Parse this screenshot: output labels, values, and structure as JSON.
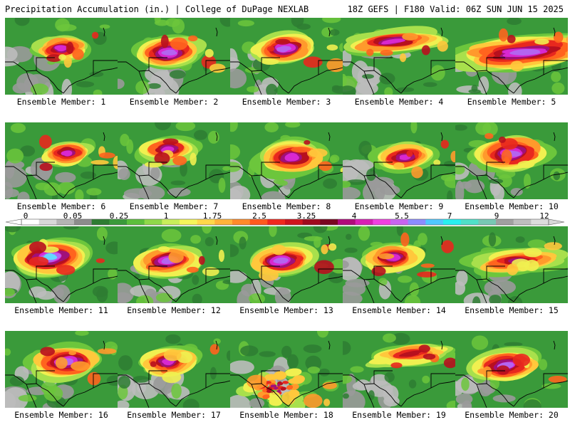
{
  "header": {
    "title": "Precipitation Accumulation (in.) | College of DuPage NEXLAB",
    "run_info": "18Z GEFS | F180 Valid: 06Z SUN JUN 15 2025"
  },
  "colorbar": {
    "labels": [
      "0",
      "0.05",
      "0.25",
      "1",
      "1.75",
      "2.5",
      "3.25",
      "4",
      "5.5",
      "7",
      "9",
      "12"
    ],
    "colors": [
      "#ffffff",
      "#d8d8d8",
      "#b4b4b4",
      "#8c8c8c",
      "#2e7d32",
      "#3a9a3a",
      "#5cbf3c",
      "#8fd84a",
      "#c8ee5a",
      "#f5f55a",
      "#ffd84a",
      "#ffb33a",
      "#ff8a2a",
      "#ff5a1e",
      "#f0281e",
      "#d0141e",
      "#a00a1e",
      "#7a0620",
      "#b00a7a",
      "#d81eb4",
      "#f040e0",
      "#c864f0",
      "#8c8cff",
      "#50c8ff",
      "#28f0f0",
      "#50e0c8",
      "#78c8b4",
      "#a0a0a0",
      "#bebebe",
      "#dcdcdc"
    ]
  },
  "members": [
    {
      "label": "Ensemble Member: 1",
      "core": [
        0.5,
        0.4
      ],
      "size": 0.7,
      "peak": 0.8,
      "pattern": "cluster"
    },
    {
      "label": "Ensemble Member: 2",
      "core": [
        0.45,
        0.45
      ],
      "size": 0.85,
      "peak": 0.9,
      "pattern": "cluster"
    },
    {
      "label": "Ensemble Member: 3",
      "core": [
        0.48,
        0.4
      ],
      "size": 0.8,
      "peak": 0.85,
      "pattern": "cluster"
    },
    {
      "label": "Ensemble Member: 4",
      "core": [
        0.45,
        0.3
      ],
      "size": 0.65,
      "peak": 0.75,
      "pattern": "band"
    },
    {
      "label": "Ensemble Member: 5",
      "core": [
        0.62,
        0.45
      ],
      "size": 0.95,
      "peak": 0.9,
      "pattern": "band"
    },
    {
      "label": "Ensemble Member: 6",
      "core": [
        0.55,
        0.4
      ],
      "size": 0.65,
      "peak": 0.75,
      "pattern": "cluster"
    },
    {
      "label": "Ensemble Member: 7",
      "core": [
        0.45,
        0.35
      ],
      "size": 0.7,
      "peak": 0.82,
      "pattern": "cluster"
    },
    {
      "label": "Ensemble Member: 8",
      "core": [
        0.55,
        0.45
      ],
      "size": 0.9,
      "peak": 0.78,
      "pattern": "cluster"
    },
    {
      "label": "Ensemble Member: 9",
      "core": [
        0.55,
        0.45
      ],
      "size": 0.75,
      "peak": 0.8,
      "pattern": "cluster"
    },
    {
      "label": "Ensemble Member: 10",
      "core": [
        0.5,
        0.4
      ],
      "size": 0.95,
      "peak": 0.88,
      "pattern": "cluster"
    },
    {
      "label": "Ensemble Member: 11",
      "core": [
        0.4,
        0.4
      ],
      "size": 0.95,
      "peak": 0.95,
      "pattern": "cluster"
    },
    {
      "label": "Ensemble Member: 12",
      "core": [
        0.45,
        0.45
      ],
      "size": 0.8,
      "peak": 0.88,
      "pattern": "cluster"
    },
    {
      "label": "Ensemble Member: 13",
      "core": [
        0.45,
        0.45
      ],
      "size": 0.85,
      "peak": 0.9,
      "pattern": "cluster"
    },
    {
      "label": "Ensemble Member: 14",
      "core": [
        0.45,
        0.4
      ],
      "size": 0.8,
      "peak": 0.82,
      "pattern": "cluster"
    },
    {
      "label": "Ensemble Member: 15",
      "core": [
        0.55,
        0.45
      ],
      "size": 0.65,
      "peak": 0.72,
      "pattern": "band"
    },
    {
      "label": "Ensemble Member: 16",
      "core": [
        0.55,
        0.4
      ],
      "size": 0.9,
      "peak": 0.92,
      "pattern": "cluster"
    },
    {
      "label": "Ensemble Member: 17",
      "core": [
        0.45,
        0.4
      ],
      "size": 0.75,
      "peak": 0.82,
      "pattern": "cluster"
    },
    {
      "label": "Ensemble Member: 18",
      "core": [
        0.4,
        0.75
      ],
      "size": 0.5,
      "peak": 0.7,
      "pattern": "scattered"
    },
    {
      "label": "Ensemble Member: 19",
      "core": [
        0.6,
        0.3
      ],
      "size": 0.6,
      "peak": 0.55,
      "pattern": "band"
    },
    {
      "label": "Ensemble Member: 20",
      "core": [
        0.45,
        0.45
      ],
      "size": 0.85,
      "peak": 0.9,
      "pattern": "cluster"
    }
  ]
}
